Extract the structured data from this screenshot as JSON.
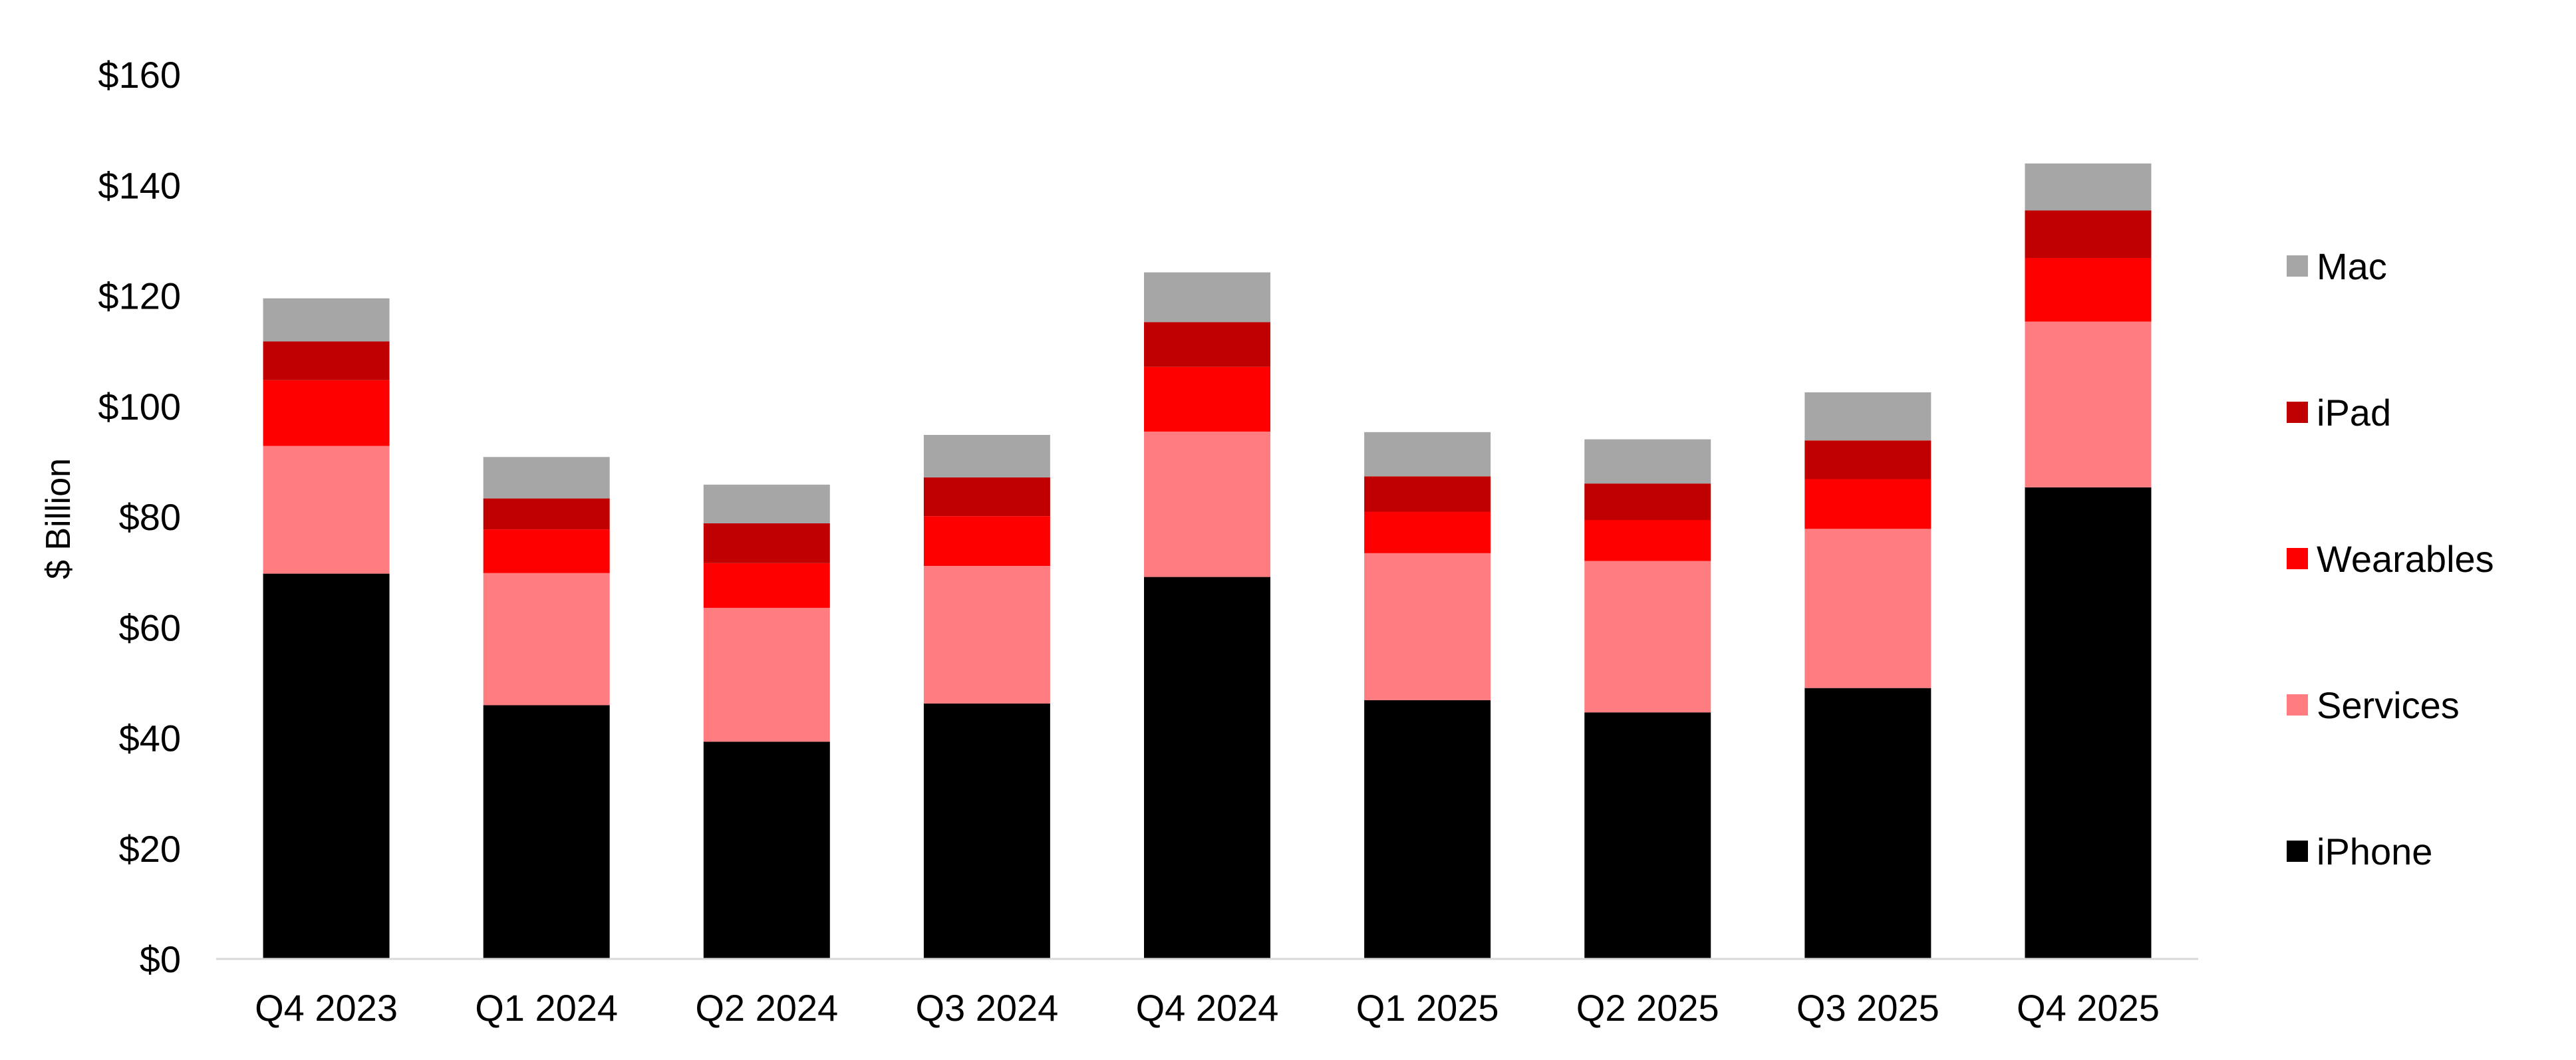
{
  "chart_data": {
    "type": "bar",
    "stacked": true,
    "ylabel": "$ Billion",
    "xlabel": "",
    "ylim": [
      0,
      160
    ],
    "y_ticks": [
      "$0",
      "$20",
      "$40",
      "$60",
      "$80",
      "$100",
      "$120",
      "$140",
      "$160"
    ],
    "grid": false,
    "legend_position": "right",
    "categories": [
      "Q4 2023",
      "Q1 2024",
      "Q2 2024",
      "Q3 2024",
      "Q4 2024",
      "Q1 2025",
      "Q2 2025",
      "Q3 2025",
      "Q4 2025"
    ],
    "series": [
      {
        "name": "iPhone",
        "color": "#000000",
        "values": [
          69.7,
          45.9,
          39.3,
          46.2,
          69.1,
          46.8,
          44.6,
          49.0,
          85.3
        ]
      },
      {
        "name": "Services",
        "color": "#ff7c80",
        "values": [
          23.1,
          23.9,
          24.2,
          24.9,
          26.3,
          26.6,
          27.4,
          28.8,
          30.0
        ]
      },
      {
        "name": "Wearables",
        "color": "#ff0000",
        "values": [
          11.9,
          7.9,
          8.1,
          9.0,
          11.7,
          7.5,
          7.4,
          9.0,
          11.5
        ]
      },
      {
        "name": "iPad",
        "color": "#c00000",
        "values": [
          7.0,
          5.6,
          7.2,
          7.0,
          8.1,
          6.4,
          6.6,
          7.0,
          8.6
        ]
      },
      {
        "name": "Mac",
        "color": "#a6a6a6",
        "values": [
          7.8,
          7.5,
          7.0,
          7.7,
          9.0,
          8.0,
          8.0,
          8.7,
          8.5
        ]
      }
    ]
  }
}
